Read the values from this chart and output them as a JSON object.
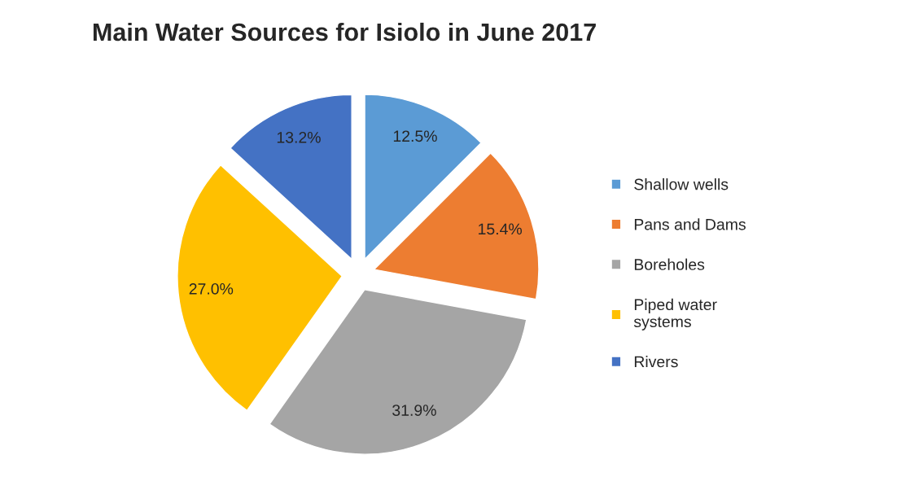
{
  "chart_data": {
    "type": "pie",
    "title": "Main Water Sources for Isiolo in June 2017",
    "categories": [
      "Shallow wells",
      "Pans and Dams",
      "Boreholes",
      "Piped water systems",
      "Rivers"
    ],
    "values": [
      12.5,
      15.4,
      31.9,
      27.0,
      13.2
    ],
    "colors": [
      "#5b9bd5",
      "#ed7d31",
      "#a5a5a5",
      "#ffc000",
      "#4472c4"
    ],
    "value_labels": [
      "12.5%",
      "15.4%",
      "31.9%",
      "27.0%",
      "13.2%"
    ],
    "legend": "right"
  }
}
